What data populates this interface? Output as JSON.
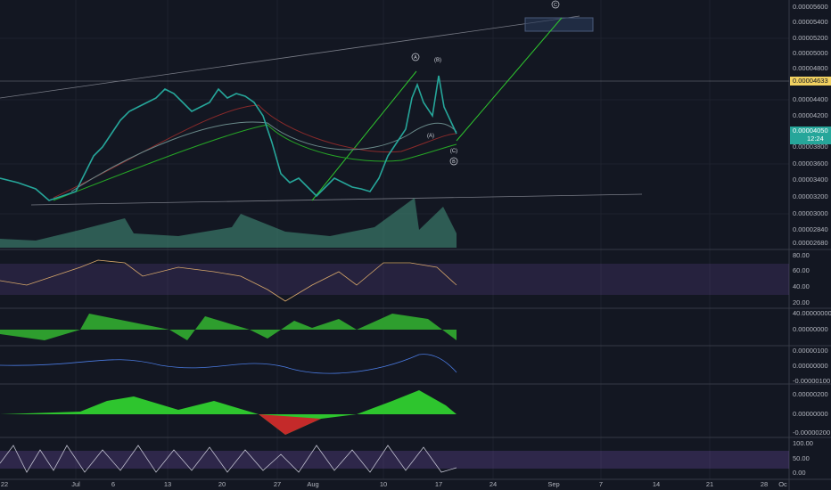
{
  "price_axis": [
    "0.00005600",
    "0.00005400",
    "0.00005200",
    "0.00005000",
    "0.00004800",
    "0.00004633",
    "0.00004400",
    "0.00004200",
    "0.00004050",
    "0.00003800",
    "0.00003600",
    "0.00003400",
    "0.00003200",
    "0.00003000",
    "0.00002840",
    "0.00002680"
  ],
  "countdown": "12:24",
  "rsi_axis": [
    "80.00",
    "60.00",
    "40.00",
    "20.00"
  ],
  "macd_axis": [
    "40.00000000",
    "0.00000000"
  ],
  "osc_axis": [
    "0.00000100",
    "0.00000000",
    "-0.00000100"
  ],
  "ao_axis": [
    "0.00000200",
    "0.00000000",
    "-0.00000200"
  ],
  "stoch_axis": [
    "100.00",
    "50.00",
    "0.00"
  ],
  "date_axis": [
    "22",
    "Jul",
    "6",
    "13",
    "20",
    "27",
    "Aug",
    "10",
    "17",
    "24",
    "Sep",
    "7",
    "14",
    "21",
    "28",
    "Oc"
  ],
  "wave_labels": [
    "C",
    "A",
    "(B)",
    "(A)",
    "(C)",
    "B"
  ]
}
